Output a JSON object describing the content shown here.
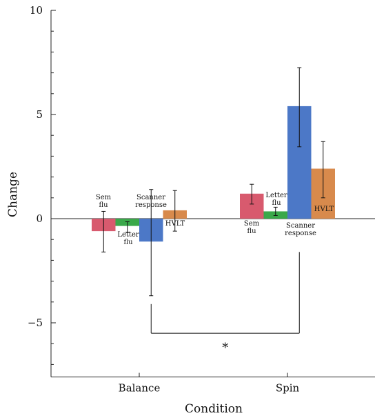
{
  "chart_data": {
    "type": "bar",
    "xlabel": "Condition",
    "ylabel": "Change",
    "ylim": [
      -7.6,
      10
    ],
    "yticks": [
      -5,
      0,
      5,
      10
    ],
    "yticklabels": [
      "−5",
      "0",
      "5",
      "10"
    ],
    "categories": [
      "Balance",
      "Spin"
    ],
    "series": [
      {
        "key": "sem",
        "labels": {
          "Balance": "Sem flu",
          "Spin": "Sem flu"
        },
        "color": "#d85a6e",
        "values": [
          -0.6,
          1.2
        ],
        "err_low": [
          -1.6,
          0.7
        ],
        "err_high": [
          0.35,
          1.65
        ]
      },
      {
        "key": "letter",
        "labels": {
          "Balance": "Letter flu",
          "Spin": "Letter flu"
        },
        "color": "#3aa84a",
        "values": [
          -0.35,
          0.35
        ],
        "err_low": [
          -0.65,
          0.15
        ],
        "err_high": [
          -0.15,
          0.55
        ]
      },
      {
        "key": "scanner",
        "labels": {
          "Balance": "Scanner response",
          "Spin": "Scanner response"
        },
        "color": "#4c78c7",
        "values": [
          -1.1,
          5.4
        ],
        "err_low": [
          -3.7,
          3.45
        ],
        "err_high": [
          1.4,
          7.25
        ]
      },
      {
        "key": "hvlt",
        "labels": {
          "Balance": "HVLT",
          "Spin": "HVLT"
        },
        "color": "#d88a4c",
        "values": [
          0.4,
          2.4
        ],
        "err_low": [
          -0.6,
          1.0
        ],
        "err_high": [
          1.35,
          3.7
        ]
      }
    ],
    "significance": {
      "from": "Balance Scanner response",
      "to": "Spin Scanner response",
      "y": -5.5,
      "label": "*"
    },
    "grid": false,
    "legend": "none"
  }
}
